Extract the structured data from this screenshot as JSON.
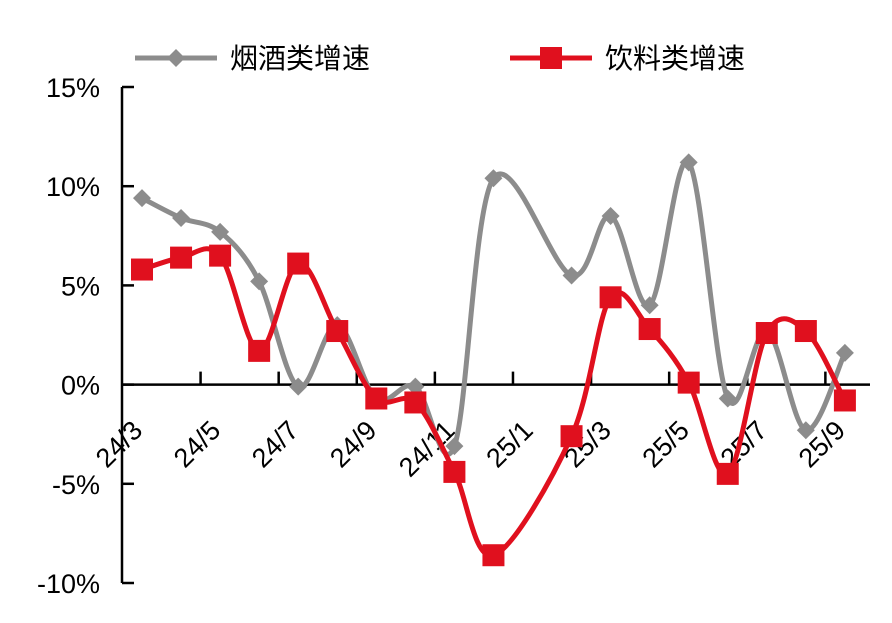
{
  "chart_data": {
    "type": "line",
    "title": "",
    "xlabel": "",
    "ylabel": "",
    "ylim": [
      -10,
      15
    ],
    "yticks": [
      -10,
      -5,
      0,
      5,
      10,
      15
    ],
    "ytick_labels": [
      "-10%",
      "-5%",
      "0%",
      "5%",
      "10%",
      "15%"
    ],
    "categories": [
      "24/3",
      "24/4",
      "24/5",
      "24/6",
      "24/7",
      "24/8",
      "24/9",
      "24/10",
      "24/11",
      "24/12",
      "25/1",
      "25/2",
      "25/3",
      "25/4",
      "25/5",
      "25/6",
      "25/7",
      "25/8",
      "25/9"
    ],
    "xtick_labels": [
      "24/3",
      "24/5",
      "24/7",
      "24/9",
      "24/11",
      "25/1",
      "25/3",
      "25/5",
      "25/7",
      "25/9"
    ],
    "legend_position": "top",
    "grid": false,
    "smooth": true,
    "series": [
      {
        "name": "烟酒类增速",
        "color": "#8c8c8c",
        "marker": "diamond",
        "values": [
          9.4,
          8.4,
          7.7,
          5.2,
          -0.1,
          3.0,
          -0.7,
          -0.1,
          -3.1,
          10.4,
          null,
          5.5,
          8.5,
          4.0,
          11.2,
          -0.7,
          2.7,
          -2.3,
          1.6
        ]
      },
      {
        "name": "饮料类增速",
        "color": "#e0101e",
        "marker": "square",
        "values": [
          5.8,
          6.4,
          6.5,
          1.7,
          6.1,
          2.7,
          -0.7,
          -0.9,
          -4.4,
          -8.6,
          null,
          -2.6,
          4.4,
          2.8,
          0.1,
          -4.5,
          2.6,
          2.7,
          -0.8
        ]
      }
    ]
  }
}
